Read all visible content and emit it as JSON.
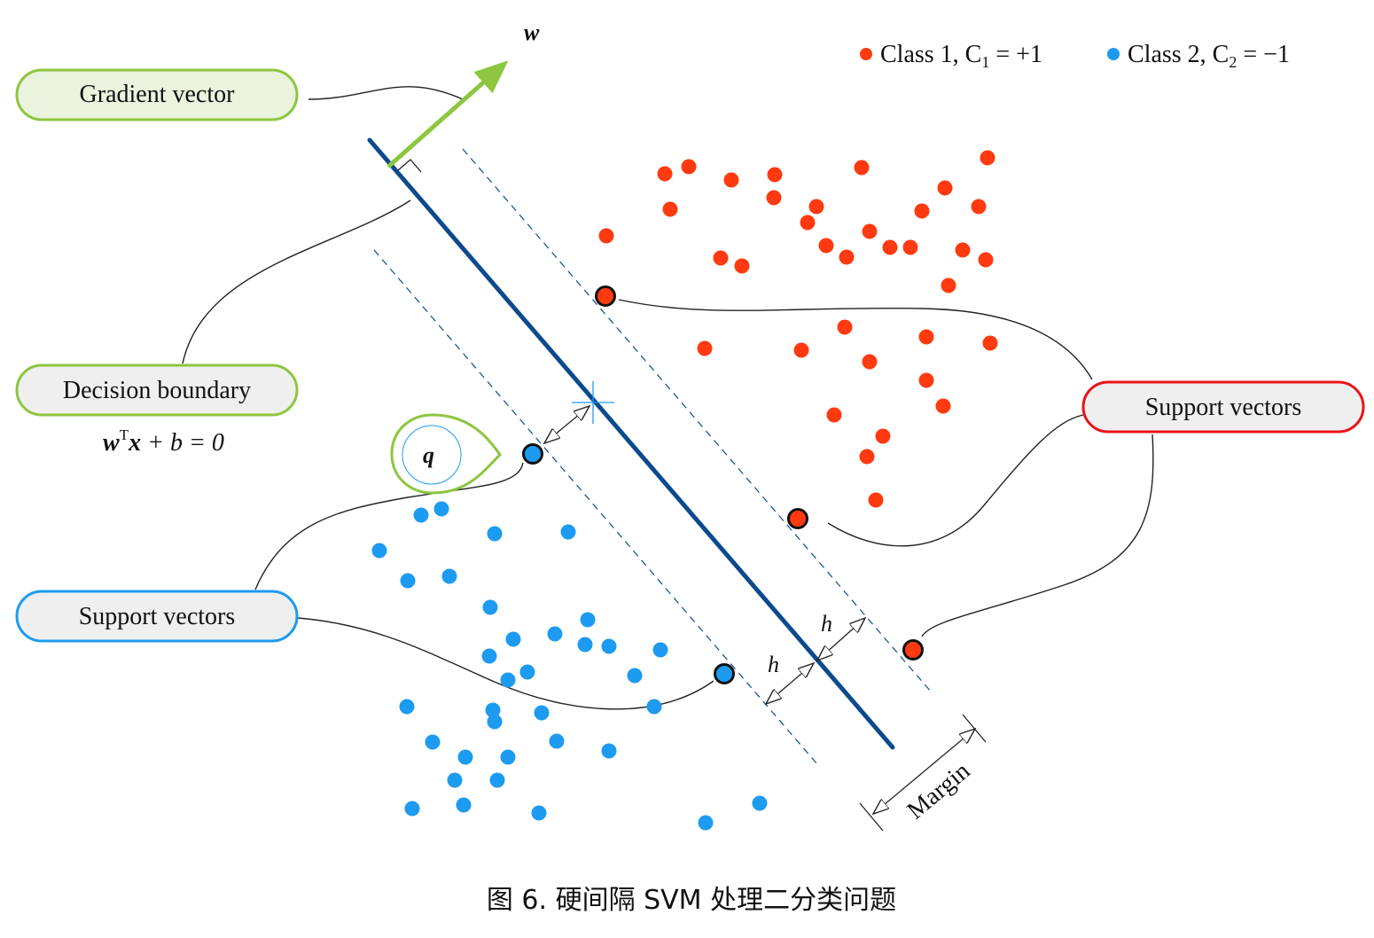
{
  "colors": {
    "class1": "#ff3a10",
    "class2": "#1d9bf0",
    "boundary": "#0d4a8c",
    "gradient": "#8dc63f",
    "support_red_border": "#e8141a",
    "support_blue_border": "#1d9bf0",
    "gradient_box_border": "#8dc63f",
    "decision_box_border": "#8dc63f"
  },
  "labels": {
    "gradient_vector": "Gradient vector",
    "decision_boundary": "Decision boundary",
    "support_vectors_red": "Support vectors",
    "support_vectors_blue": "Support vectors",
    "w": "w",
    "q": "q",
    "h1": "h",
    "h2": "h",
    "margin": "Margin"
  },
  "equation": {
    "w": "w",
    "sup_T": "T",
    "x": "x",
    "rest": " + b = 0"
  },
  "legend": {
    "class1_text": "Class 1, C",
    "class1_sub": "1",
    "class1_val": " = +1",
    "class2_text": "Class 2, C",
    "class2_sub": "2",
    "class2_val": " = −1"
  },
  "caption": "图 6. 硬间隔 SVM 处理二分类问题",
  "class1_points": [
    [
      750,
      196
    ],
    [
      777,
      188
    ],
    [
      825,
      203
    ],
    [
      874,
      197
    ],
    [
      972,
      189
    ],
    [
      1114,
      178
    ],
    [
      756,
      236
    ],
    [
      873,
      223
    ],
    [
      921,
      233
    ],
    [
      1066,
      212
    ],
    [
      1104,
      233
    ],
    [
      1040,
      238
    ],
    [
      911,
      251
    ],
    [
      981,
      261
    ],
    [
      684,
      266
    ],
    [
      932,
      277
    ],
    [
      1004,
      279
    ],
    [
      1027,
      279
    ],
    [
      1086,
      282
    ],
    [
      955,
      290
    ],
    [
      813,
      291
    ],
    [
      837,
      300
    ],
    [
      1112,
      293
    ],
    [
      1070,
      322
    ],
    [
      953,
      369
    ],
    [
      1045,
      380
    ],
    [
      1117,
      387
    ],
    [
      795,
      393
    ],
    [
      904,
      395
    ],
    [
      981,
      408
    ],
    [
      1045,
      429
    ],
    [
      1064,
      458
    ],
    [
      941,
      468
    ],
    [
      996,
      492
    ],
    [
      978,
      515
    ],
    [
      988,
      564
    ]
  ],
  "class2_points": [
    [
      475,
      581
    ],
    [
      498,
      574
    ],
    [
      558,
      602
    ],
    [
      641,
      600
    ],
    [
      428,
      621
    ],
    [
      460,
      655
    ],
    [
      507,
      650
    ],
    [
      553,
      685
    ],
    [
      663,
      699
    ],
    [
      579,
      721
    ],
    [
      626,
      715
    ],
    [
      660,
      727
    ],
    [
      687,
      729
    ],
    [
      745,
      733
    ],
    [
      552,
      740
    ],
    [
      595,
      758
    ],
    [
      573,
      767
    ],
    [
      716,
      762
    ],
    [
      459,
      797
    ],
    [
      556,
      801
    ],
    [
      611,
      804
    ],
    [
      738,
      797
    ],
    [
      558,
      814
    ],
    [
      488,
      837
    ],
    [
      628,
      836
    ],
    [
      687,
      847
    ],
    [
      525,
      854
    ],
    [
      573,
      854
    ],
    [
      513,
      880
    ],
    [
      561,
      880
    ],
    [
      465,
      912
    ],
    [
      523,
      908
    ],
    [
      608,
      917
    ],
    [
      857,
      906
    ],
    [
      796,
      928
    ]
  ],
  "class1_support": [
    [
      683,
      334
    ],
    [
      900,
      585
    ],
    [
      1030,
      733
    ]
  ],
  "class2_support": [
    [
      601,
      512
    ],
    [
      817,
      760
    ]
  ]
}
